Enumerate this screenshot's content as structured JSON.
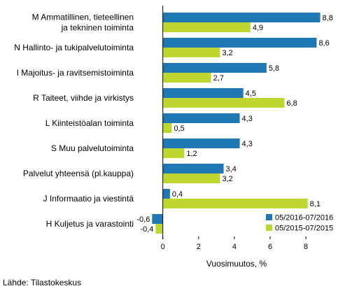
{
  "chart_data": {
    "type": "bar",
    "orientation": "horizontal",
    "categories": [
      [
        "M Ammatillinen, tieteellinen",
        "ja tekninen toiminta"
      ],
      [
        "N Hallinto- ja tukipalvelutoiminta"
      ],
      [
        "I Majoitus- ja ravitsemistoiminta"
      ],
      [
        "R Taiteet, viihde ja virkistys"
      ],
      [
        "L Kiinteistöalan toiminta"
      ],
      [
        "S Muu palvelutoiminta"
      ],
      [
        "Palvelut yhteensä (pl.kauppa)"
      ],
      [
        "J Informaatio ja viestintä"
      ],
      [
        "H Kuljetus ja varastointi"
      ]
    ],
    "series": [
      {
        "name": "05/2016-07/2016",
        "color": "#1f77b4",
        "values": [
          8.8,
          8.6,
          5.8,
          4.5,
          4.3,
          4.3,
          3.4,
          0.4,
          -0.6
        ],
        "labels": [
          "8,8",
          "8,6",
          "5,8",
          "4,5",
          "4,3",
          "4,3",
          "3,4",
          "0,4",
          "-0,6"
        ]
      },
      {
        "name": "05/2015-07/2015",
        "color": "#bfd630",
        "values": [
          4.9,
          3.2,
          2.7,
          6.8,
          0.5,
          1.2,
          3.2,
          8.1,
          -0.4
        ],
        "labels": [
          "4,9",
          "3,2",
          "2,7",
          "6,8",
          "0,5",
          "1,2",
          "3,2",
          "8,1",
          "-0,4"
        ]
      }
    ],
    "xlim": [
      -1.2,
      9.6
    ],
    "ticks": [
      0,
      2,
      4,
      6,
      8
    ],
    "tick_labels": [
      "0",
      "2",
      "4",
      "6",
      "8"
    ],
    "xlabel": "Vuosimuutos, %",
    "legend_position": "bottom-right",
    "grid": false
  },
  "source": "Lähde: Tilastokeskus"
}
